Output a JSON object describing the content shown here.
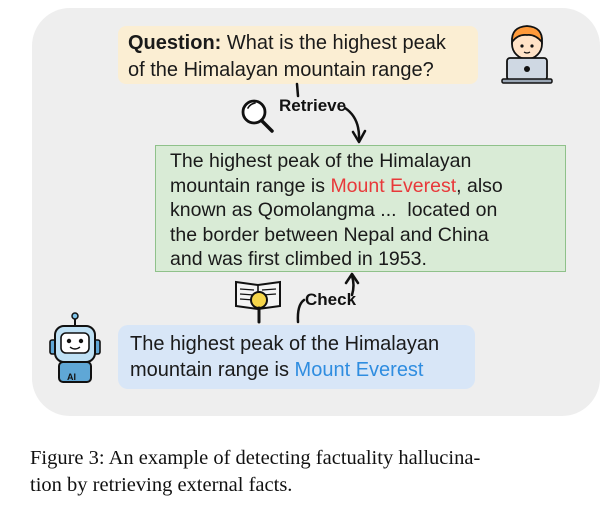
{
  "question": {
    "label": "Question:",
    "line1": " What is the highest peak",
    "line2": "of the Himalayan mountain range?"
  },
  "retrieve_label": "Retrieve",
  "check_label": "Check",
  "retrieved_fact": {
    "line1": "The highest peak of the Himalayan",
    "line2_pre": "mountain range is ",
    "highlight": "Mount Everest",
    "line2_post": ", also",
    "line3": "known as Qomolangma ...  located on",
    "line4": "the border between Nepal and China",
    "line5": "and was first climbed in 1953."
  },
  "model_answer": {
    "line1": "The highest peak of the Himalayan",
    "line2_pre": "mountain range is ",
    "highlight": "Mount Everest"
  },
  "robot_badge": "AI",
  "caption": {
    "line1": "Figure 3: An example of detecting factuality hallucina-",
    "line2": "tion by retrieving external facts."
  },
  "icons": [
    "user-laptop-icon",
    "magnifier-icon",
    "book-magnifier-icon",
    "robot-icon"
  ],
  "colors": {
    "question_bg": "#fbeed3",
    "fact_bg": "#d9ebd6",
    "fact_border": "#8fc18a",
    "answer_bg": "#d8e6f7",
    "highlight_red": "#e8393a",
    "highlight_blue": "#2f8de0",
    "panel_bg": "#eeeeee"
  }
}
